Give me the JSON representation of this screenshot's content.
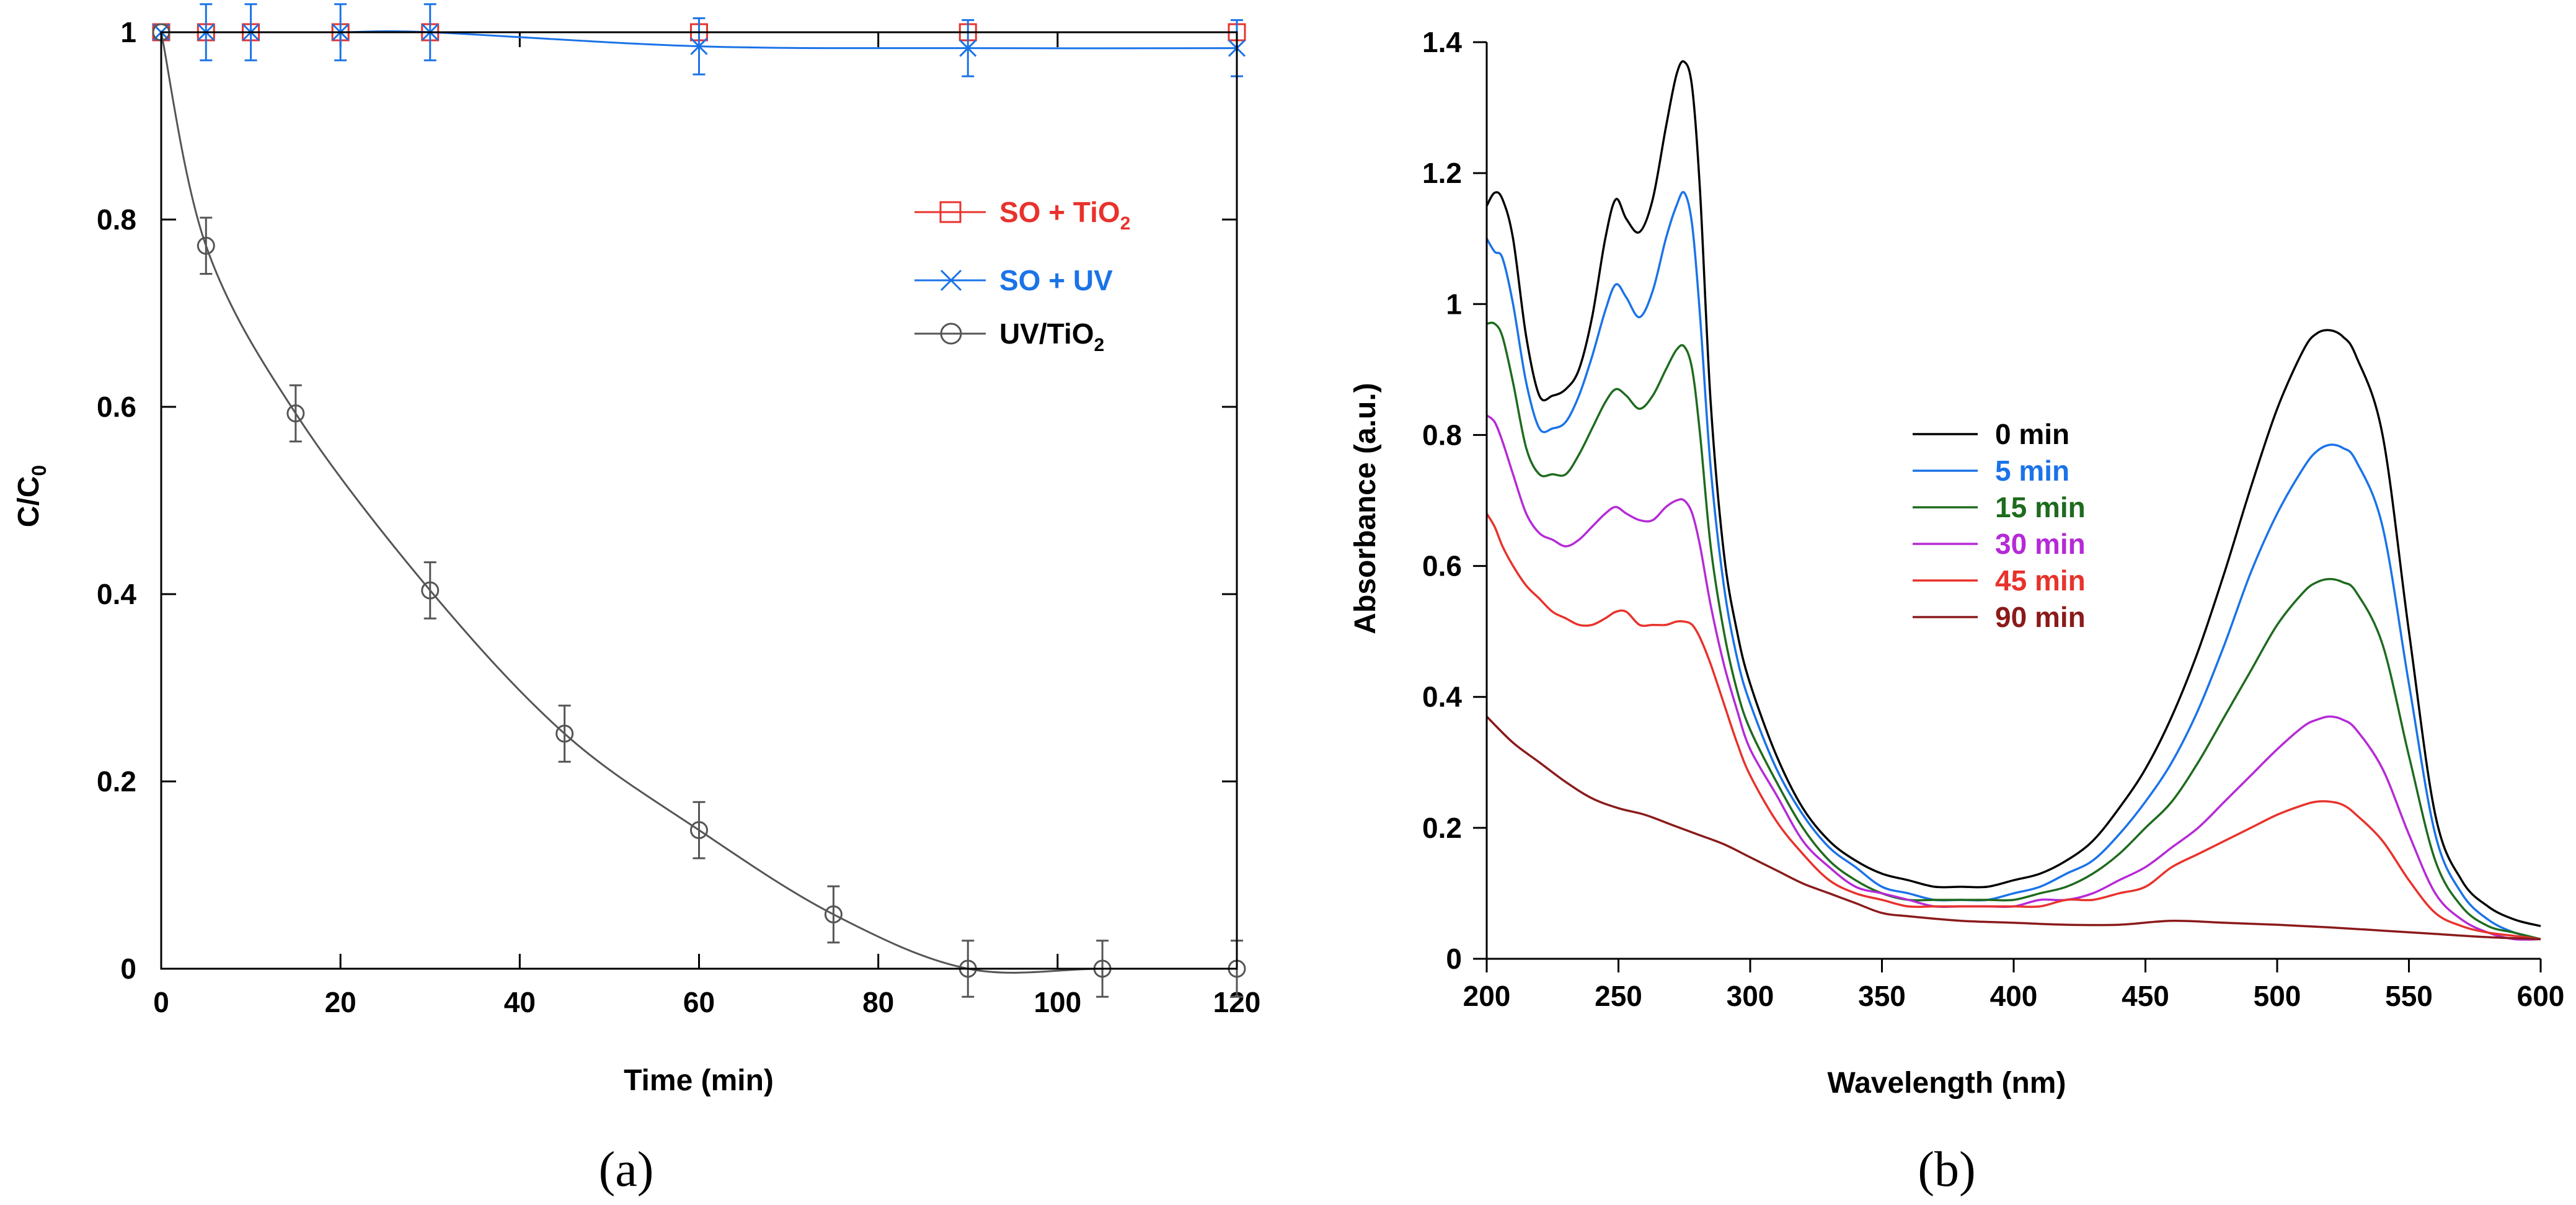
{
  "chart_data": [
    {
      "panel_label": "(a)",
      "type": "line",
      "xlabel": "Time (min)",
      "ylabel_main": "C/C",
      "ylabel_sub": "0",
      "xlim": [
        0,
        120
      ],
      "ylim": [
        0,
        1
      ],
      "xticks": [
        0,
        20,
        40,
        60,
        80,
        100,
        120
      ],
      "xtick_labels": [
        "0",
        "20",
        "40",
        "60",
        "80",
        "100",
        "120"
      ],
      "yticks": [
        0,
        0.2,
        0.4,
        0.6,
        0.8,
        1
      ],
      "ytick_labels": [
        "0",
        "0.2",
        "0.4",
        "0.6",
        "0.8",
        "1"
      ],
      "legend_position": "upper-right",
      "series": [
        {
          "name": "SO + TiO",
          "name_sub": "2",
          "color": "#e8322c",
          "marker": "square",
          "x": [
            0,
            5,
            10,
            20,
            30,
            60,
            90,
            120
          ],
          "y": [
            1,
            1,
            1,
            1,
            1,
            1,
            1,
            1
          ],
          "err": [
            0,
            0,
            0,
            0,
            0,
            0,
            0,
            0
          ]
        },
        {
          "name": "SO + UV",
          "name_sub": "",
          "color": "#1a73e8",
          "marker": "x",
          "x": [
            0,
            5,
            10,
            20,
            30,
            60,
            90,
            120
          ],
          "y": [
            1,
            1,
            1,
            1,
            1,
            0.985,
            0.983,
            0.983
          ],
          "err": [
            0,
            0.03,
            0.03,
            0.03,
            0.03,
            0.03,
            0.03,
            0.03
          ]
        },
        {
          "name": "UV/TiO",
          "name_sub": "2",
          "color": "#555555",
          "marker": "circle",
          "x": [
            0,
            5,
            15,
            30,
            45,
            60,
            75,
            90,
            105,
            120
          ],
          "y": [
            1,
            0.772,
            0.593,
            0.404,
            0.251,
            0.148,
            0.058,
            0,
            0,
            0
          ],
          "err": [
            0,
            0.03,
            0.03,
            0.03,
            0.03,
            0.03,
            0.03,
            0.03,
            0.03,
            0.03
          ]
        }
      ]
    },
    {
      "panel_label": "(b)",
      "type": "line",
      "xlabel": "Wavelength (nm)",
      "ylabel": "Absorbance (a.u.)",
      "xlim": [
        200,
        600
      ],
      "ylim": [
        0,
        1.4
      ],
      "xticks": [
        200,
        250,
        300,
        350,
        400,
        450,
        500,
        550,
        600
      ],
      "xtick_labels": [
        "200",
        "250",
        "300",
        "350",
        "400",
        "450",
        "500",
        "550",
        "600"
      ],
      "yticks": [
        0,
        0.2,
        0.4,
        0.6,
        0.8,
        1,
        1.2,
        1.4
      ],
      "ytick_labels": [
        "0",
        "0.2",
        "0.4",
        "0.6",
        "0.8",
        "1",
        "1.2",
        "1.4"
      ],
      "legend_position": "center",
      "series": [
        {
          "name": "0 min",
          "color": "#000000",
          "x": [
            200,
            203,
            206,
            210,
            215,
            220,
            225,
            230,
            235,
            240,
            245,
            249,
            253,
            258,
            263,
            268,
            272,
            275,
            278,
            281,
            285,
            290,
            295,
            300,
            310,
            320,
            330,
            340,
            350,
            360,
            370,
            380,
            390,
            400,
            410,
            420,
            430,
            440,
            450,
            460,
            470,
            480,
            490,
            500,
            510,
            515,
            520,
            525,
            530,
            540,
            550,
            560,
            570,
            580,
            590,
            600
          ],
          "y": [
            1.15,
            1.17,
            1.16,
            1.1,
            0.95,
            0.86,
            0.86,
            0.87,
            0.9,
            0.98,
            1.1,
            1.16,
            1.13,
            1.11,
            1.16,
            1.27,
            1.35,
            1.37,
            1.33,
            1.17,
            0.85,
            0.62,
            0.5,
            0.42,
            0.31,
            0.23,
            0.18,
            0.15,
            0.13,
            0.12,
            0.11,
            0.11,
            0.11,
            0.12,
            0.13,
            0.15,
            0.18,
            0.23,
            0.29,
            0.37,
            0.47,
            0.59,
            0.72,
            0.84,
            0.93,
            0.955,
            0.96,
            0.95,
            0.92,
            0.8,
            0.5,
            0.22,
            0.12,
            0.08,
            0.06,
            0.05
          ]
        },
        {
          "name": "5 min",
          "color": "#1a73e8",
          "x": [
            200,
            203,
            206,
            210,
            215,
            220,
            225,
            230,
            235,
            240,
            245,
            249,
            253,
            258,
            263,
            268,
            272,
            275,
            278,
            281,
            285,
            290,
            295,
            300,
            310,
            320,
            330,
            340,
            350,
            360,
            370,
            380,
            390,
            400,
            410,
            420,
            430,
            440,
            450,
            460,
            470,
            480,
            490,
            500,
            510,
            515,
            520,
            525,
            530,
            540,
            550,
            560,
            570,
            580,
            590,
            600
          ],
          "y": [
            1.1,
            1.08,
            1.07,
            1.0,
            0.88,
            0.81,
            0.81,
            0.82,
            0.86,
            0.92,
            0.99,
            1.03,
            1.01,
            0.98,
            1.02,
            1.1,
            1.15,
            1.17,
            1.12,
            0.98,
            0.75,
            0.57,
            0.46,
            0.39,
            0.29,
            0.22,
            0.17,
            0.14,
            0.11,
            0.1,
            0.09,
            0.09,
            0.09,
            0.1,
            0.11,
            0.13,
            0.15,
            0.19,
            0.24,
            0.3,
            0.38,
            0.48,
            0.59,
            0.68,
            0.75,
            0.775,
            0.785,
            0.78,
            0.76,
            0.66,
            0.42,
            0.19,
            0.1,
            0.06,
            0.04,
            0.03
          ]
        },
        {
          "name": "15 min",
          "color": "#1e6b1e",
          "x": [
            200,
            203,
            206,
            210,
            215,
            220,
            225,
            230,
            235,
            240,
            245,
            249,
            253,
            258,
            263,
            268,
            272,
            275,
            278,
            281,
            285,
            290,
            295,
            300,
            310,
            320,
            330,
            340,
            350,
            360,
            370,
            380,
            390,
            400,
            410,
            420,
            430,
            440,
            450,
            460,
            470,
            480,
            490,
            500,
            510,
            515,
            520,
            525,
            530,
            540,
            550,
            560,
            570,
            580,
            590,
            600
          ],
          "y": [
            0.97,
            0.97,
            0.95,
            0.88,
            0.78,
            0.74,
            0.74,
            0.74,
            0.77,
            0.81,
            0.85,
            0.87,
            0.86,
            0.84,
            0.86,
            0.9,
            0.93,
            0.935,
            0.9,
            0.8,
            0.63,
            0.5,
            0.41,
            0.35,
            0.27,
            0.2,
            0.15,
            0.12,
            0.1,
            0.09,
            0.09,
            0.09,
            0.09,
            0.09,
            0.1,
            0.11,
            0.13,
            0.16,
            0.2,
            0.24,
            0.3,
            0.37,
            0.44,
            0.51,
            0.56,
            0.575,
            0.58,
            0.575,
            0.56,
            0.48,
            0.31,
            0.15,
            0.08,
            0.05,
            0.04,
            0.03
          ]
        },
        {
          "name": "30 min",
          "color": "#b52ad6",
          "x": [
            200,
            203,
            206,
            210,
            215,
            220,
            225,
            230,
            235,
            240,
            245,
            249,
            253,
            258,
            263,
            268,
            272,
            275,
            278,
            281,
            285,
            290,
            295,
            300,
            310,
            320,
            330,
            340,
            350,
            360,
            370,
            380,
            390,
            400,
            410,
            420,
            430,
            440,
            450,
            460,
            470,
            480,
            490,
            500,
            510,
            515,
            520,
            525,
            530,
            540,
            550,
            560,
            570,
            580,
            590,
            600
          ],
          "y": [
            0.83,
            0.82,
            0.79,
            0.74,
            0.68,
            0.65,
            0.64,
            0.63,
            0.64,
            0.66,
            0.68,
            0.69,
            0.68,
            0.67,
            0.67,
            0.69,
            0.7,
            0.7,
            0.68,
            0.63,
            0.54,
            0.45,
            0.38,
            0.32,
            0.25,
            0.18,
            0.14,
            0.11,
            0.1,
            0.09,
            0.08,
            0.08,
            0.08,
            0.08,
            0.09,
            0.09,
            0.1,
            0.12,
            0.14,
            0.17,
            0.2,
            0.24,
            0.28,
            0.32,
            0.355,
            0.365,
            0.37,
            0.365,
            0.35,
            0.29,
            0.19,
            0.1,
            0.06,
            0.04,
            0.03,
            0.03
          ]
        },
        {
          "name": "45 min",
          "color": "#e8322c",
          "x": [
            200,
            203,
            206,
            210,
            215,
            220,
            225,
            230,
            235,
            240,
            245,
            249,
            253,
            258,
            263,
            268,
            272,
            275,
            278,
            281,
            285,
            290,
            295,
            300,
            310,
            320,
            330,
            340,
            350,
            360,
            370,
            380,
            390,
            400,
            410,
            420,
            430,
            440,
            450,
            460,
            470,
            480,
            490,
            500,
            510,
            515,
            520,
            525,
            530,
            540,
            550,
            560,
            570,
            580,
            590,
            600
          ],
          "y": [
            0.68,
            0.66,
            0.63,
            0.6,
            0.57,
            0.55,
            0.53,
            0.52,
            0.51,
            0.51,
            0.52,
            0.53,
            0.53,
            0.51,
            0.51,
            0.51,
            0.515,
            0.515,
            0.51,
            0.49,
            0.45,
            0.39,
            0.33,
            0.28,
            0.21,
            0.16,
            0.12,
            0.1,
            0.09,
            0.08,
            0.08,
            0.08,
            0.08,
            0.08,
            0.08,
            0.09,
            0.09,
            0.1,
            0.11,
            0.14,
            0.16,
            0.18,
            0.2,
            0.22,
            0.235,
            0.24,
            0.24,
            0.235,
            0.22,
            0.18,
            0.12,
            0.07,
            0.05,
            0.04,
            0.035,
            0.03
          ]
        },
        {
          "name": "90 min",
          "color": "#8b1a1a",
          "x": [
            200,
            210,
            220,
            230,
            240,
            250,
            260,
            270,
            280,
            290,
            300,
            310,
            320,
            330,
            340,
            350,
            360,
            380,
            400,
            420,
            440,
            460,
            480,
            500,
            520,
            540,
            560,
            580,
            600
          ],
          "y": [
            0.37,
            0.33,
            0.3,
            0.27,
            0.245,
            0.23,
            0.22,
            0.205,
            0.19,
            0.175,
            0.155,
            0.135,
            0.115,
            0.1,
            0.085,
            0.07,
            0.065,
            0.058,
            0.055,
            0.052,
            0.052,
            0.058,
            0.055,
            0.052,
            0.048,
            0.043,
            0.038,
            0.033,
            0.03
          ]
        }
      ]
    }
  ]
}
